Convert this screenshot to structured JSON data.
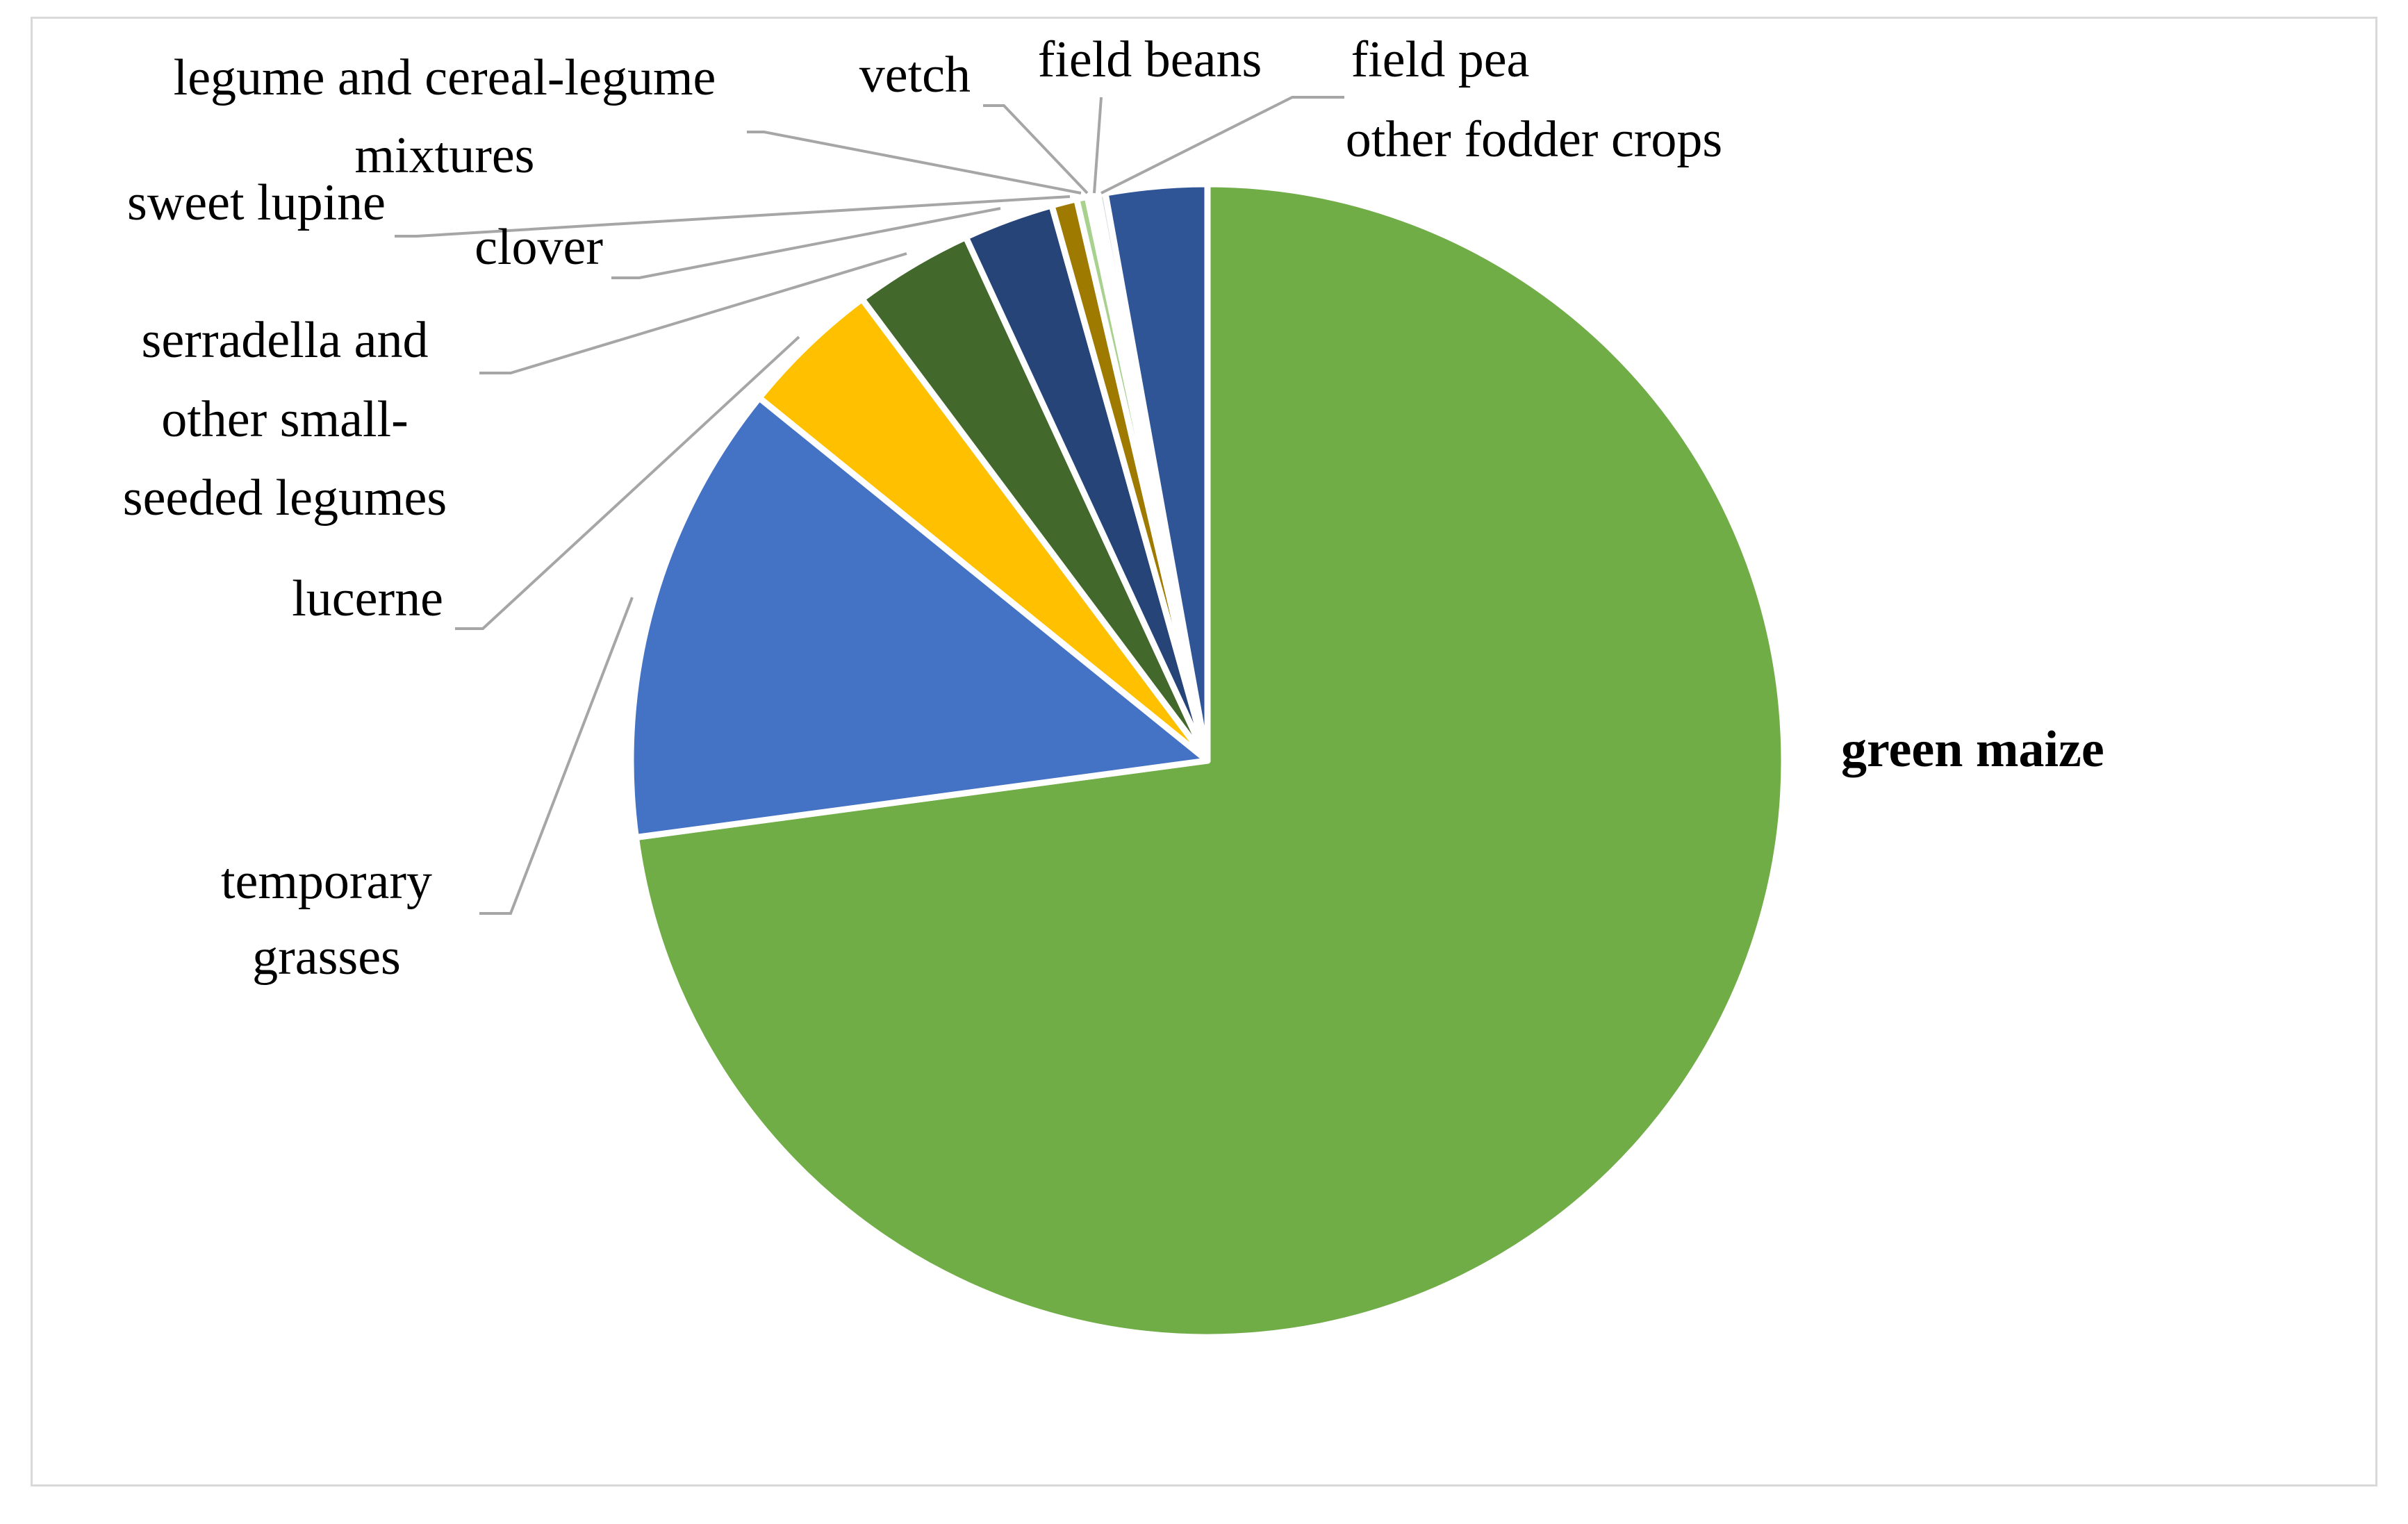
{
  "chart_data": {
    "type": "pie",
    "title": "",
    "slices": [
      {
        "label": "green maize",
        "value": 72.0,
        "color": "#70ad47",
        "bold": true
      },
      {
        "label": "temporary grasses",
        "value": 12.8,
        "color": "#4472c4"
      },
      {
        "label": "lucerne",
        "value": 3.9,
        "color": "#ffc000"
      },
      {
        "label": "serradella and other small-seeded legumes",
        "value": 3.3,
        "color": "#43682b"
      },
      {
        "label": "clover",
        "value": 2.5,
        "color": "#264478"
      },
      {
        "label": "sweet lupine",
        "value": 0.7,
        "color": "#9e7b00"
      },
      {
        "label": "legume and cereal-legume mixtures",
        "value": 0.3,
        "color": "#a9d18e"
      },
      {
        "label": "vetch",
        "value": 0.15,
        "color": "#7cafdd"
      },
      {
        "label": "field beans",
        "value": 0.15,
        "color": "#f4b183"
      },
      {
        "label": "field pea",
        "value": 0.2,
        "color": "#d6dce5"
      },
      {
        "label": "other fodder crops",
        "value": 2.8,
        "color": "#2f5597"
      }
    ]
  }
}
